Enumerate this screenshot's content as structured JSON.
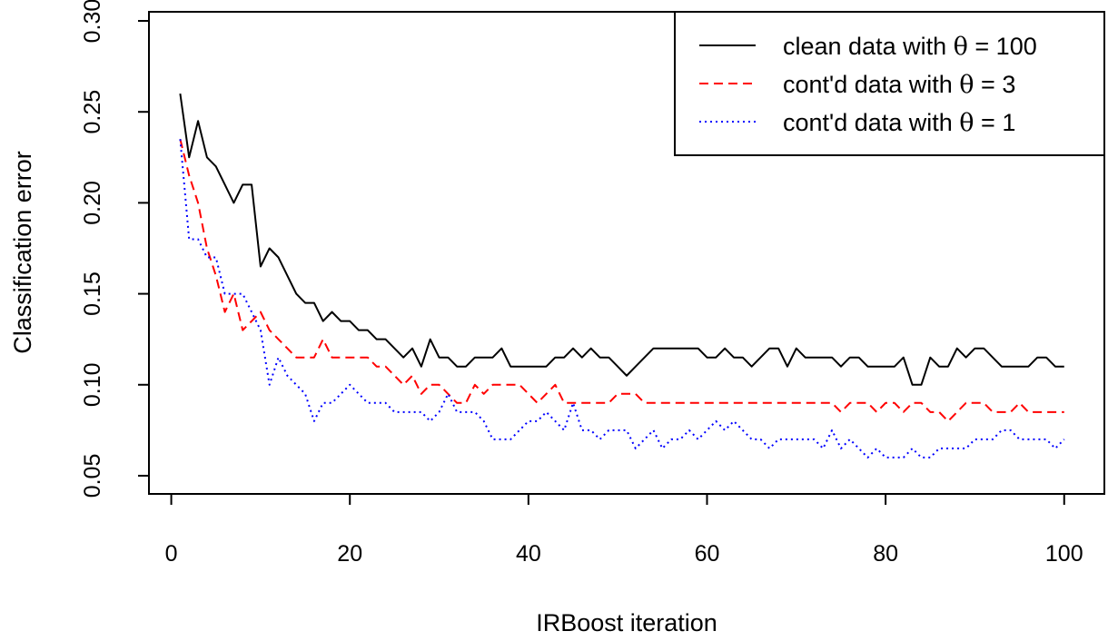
{
  "chart_data": {
    "type": "line",
    "title": "",
    "xlabel": "IRBoost iteration",
    "ylabel": "Classification error",
    "xlim": [
      -2.5,
      104.5
    ],
    "ylim": [
      0.04,
      0.305
    ],
    "xticks": [
      0,
      20,
      40,
      60,
      80,
      100
    ],
    "yticks": [
      0.05,
      0.1,
      0.15,
      0.2,
      0.25,
      0.3
    ],
    "ytick_labels": [
      "0.05",
      "0.10",
      "0.15",
      "0.20",
      "0.25",
      "0.30"
    ],
    "grid": false,
    "legend_position": "top-right",
    "x": [
      1,
      2,
      3,
      4,
      5,
      6,
      7,
      8,
      9,
      10,
      11,
      12,
      13,
      14,
      15,
      16,
      17,
      18,
      19,
      20,
      21,
      22,
      23,
      24,
      25,
      26,
      27,
      28,
      29,
      30,
      31,
      32,
      33,
      34,
      35,
      36,
      37,
      38,
      39,
      40,
      41,
      42,
      43,
      44,
      45,
      46,
      47,
      48,
      49,
      50,
      51,
      52,
      53,
      54,
      55,
      56,
      57,
      58,
      59,
      60,
      61,
      62,
      63,
      64,
      65,
      66,
      67,
      68,
      69,
      70,
      71,
      72,
      73,
      74,
      75,
      76,
      77,
      78,
      79,
      80,
      81,
      82,
      83,
      84,
      85,
      86,
      87,
      88,
      89,
      90,
      91,
      92,
      93,
      94,
      95,
      96,
      97,
      98,
      99,
      100
    ],
    "series": [
      {
        "legend_prefix": "clean data with ",
        "legend_suffix": "100",
        "color": "#000000",
        "dash": "solid",
        "values": [
          0.26,
          0.225,
          0.245,
          0.225,
          0.22,
          0.21,
          0.2,
          0.21,
          0.21,
          0.165,
          0.175,
          0.17,
          0.16,
          0.15,
          0.145,
          0.145,
          0.135,
          0.14,
          0.135,
          0.135,
          0.13,
          0.13,
          0.125,
          0.125,
          0.12,
          0.115,
          0.12,
          0.11,
          0.125,
          0.115,
          0.115,
          0.11,
          0.11,
          0.115,
          0.115,
          0.115,
          0.12,
          0.11,
          0.11,
          0.11,
          0.11,
          0.11,
          0.115,
          0.115,
          0.12,
          0.115,
          0.12,
          0.115,
          0.115,
          0.11,
          0.105,
          0.11,
          0.115,
          0.12,
          0.12,
          0.12,
          0.12,
          0.12,
          0.12,
          0.115,
          0.115,
          0.12,
          0.115,
          0.115,
          0.11,
          0.115,
          0.12,
          0.12,
          0.11,
          0.12,
          0.115,
          0.115,
          0.115,
          0.115,
          0.11,
          0.115,
          0.115,
          0.11,
          0.11,
          0.11,
          0.11,
          0.115,
          0.1,
          0.1,
          0.115,
          0.11,
          0.11,
          0.12,
          0.115,
          0.12,
          0.12,
          0.115,
          0.11,
          0.11,
          0.11,
          0.11,
          0.115,
          0.115,
          0.11,
          0.11
        ]
      },
      {
        "legend_prefix": "cont'd data with ",
        "legend_suffix": "3",
        "color": "#ff0000",
        "dash": "dashed",
        "values": [
          0.235,
          0.215,
          0.2,
          0.175,
          0.16,
          0.14,
          0.15,
          0.13,
          0.135,
          0.14,
          0.13,
          0.125,
          0.12,
          0.115,
          0.115,
          0.115,
          0.125,
          0.115,
          0.115,
          0.115,
          0.115,
          0.115,
          0.11,
          0.11,
          0.105,
          0.1,
          0.105,
          0.095,
          0.1,
          0.1,
          0.095,
          0.09,
          0.09,
          0.1,
          0.095,
          0.1,
          0.1,
          0.1,
          0.1,
          0.095,
          0.09,
          0.095,
          0.1,
          0.09,
          0.09,
          0.09,
          0.09,
          0.09,
          0.09,
          0.095,
          0.095,
          0.095,
          0.09,
          0.09,
          0.09,
          0.09,
          0.09,
          0.09,
          0.09,
          0.09,
          0.09,
          0.09,
          0.09,
          0.09,
          0.09,
          0.09,
          0.09,
          0.09,
          0.09,
          0.09,
          0.09,
          0.09,
          0.09,
          0.09,
          0.085,
          0.09,
          0.09,
          0.09,
          0.085,
          0.09,
          0.09,
          0.085,
          0.09,
          0.09,
          0.085,
          0.085,
          0.08,
          0.085,
          0.09,
          0.09,
          0.09,
          0.085,
          0.085,
          0.085,
          0.09,
          0.085,
          0.085,
          0.085,
          0.085,
          0.085
        ]
      },
      {
        "legend_prefix": "cont'd data with ",
        "legend_suffix": "1",
        "color": "#0000ff",
        "dash": "dotted",
        "values": [
          0.235,
          0.18,
          0.18,
          0.17,
          0.17,
          0.15,
          0.15,
          0.15,
          0.14,
          0.13,
          0.1,
          0.115,
          0.105,
          0.1,
          0.095,
          0.08,
          0.09,
          0.09,
          0.095,
          0.1,
          0.095,
          0.09,
          0.09,
          0.09,
          0.085,
          0.085,
          0.085,
          0.085,
          0.08,
          0.085,
          0.095,
          0.085,
          0.085,
          0.085,
          0.08,
          0.07,
          0.07,
          0.07,
          0.075,
          0.08,
          0.08,
          0.085,
          0.08,
          0.075,
          0.09,
          0.075,
          0.075,
          0.07,
          0.075,
          0.075,
          0.075,
          0.065,
          0.07,
          0.075,
          0.065,
          0.07,
          0.07,
          0.075,
          0.07,
          0.075,
          0.08,
          0.075,
          0.08,
          0.075,
          0.07,
          0.07,
          0.065,
          0.07,
          0.07,
          0.07,
          0.07,
          0.07,
          0.065,
          0.075,
          0.065,
          0.07,
          0.065,
          0.06,
          0.065,
          0.06,
          0.06,
          0.06,
          0.065,
          0.06,
          0.06,
          0.065,
          0.065,
          0.065,
          0.065,
          0.07,
          0.07,
          0.07,
          0.075,
          0.075,
          0.07,
          0.07,
          0.07,
          0.07,
          0.065,
          0.07
        ]
      }
    ]
  }
}
